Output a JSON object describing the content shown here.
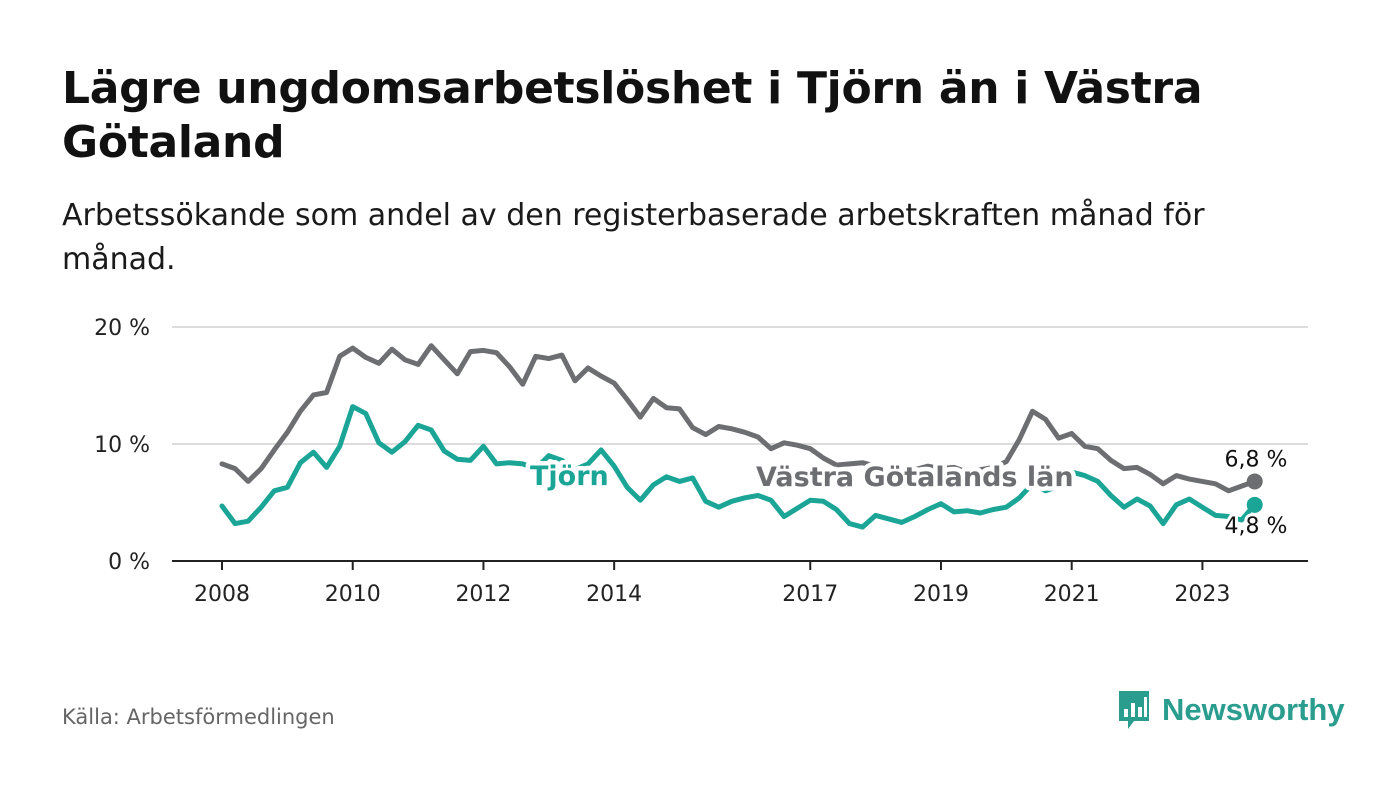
{
  "header": {
    "title": "Lägre ungdomsarbetslöshet i Tjörn än i Västra Götaland",
    "subtitle": "Arbetssökande som andel av den registerbaserade arbetskraften månad för månad."
  },
  "footer": {
    "source": "Källa: Arbetsförmedlingen",
    "brand": "Newsworthy"
  },
  "colors": {
    "vastra": "#6d6e71",
    "tjorn": "#1aa597",
    "grid": "#dcdcdc",
    "axis": "#222222"
  },
  "chart_data": {
    "type": "line",
    "title": "Lägre ungdomsarbetslöshet i Tjörn än i Västra Götaland",
    "xlabel": "",
    "ylabel": "",
    "ylim": [
      0,
      20
    ],
    "xlim": [
      2008,
      2024.6
    ],
    "y_ticks": [
      0,
      10,
      20
    ],
    "y_tick_labels": [
      "0 %",
      "10 %",
      "20 %"
    ],
    "x_ticks": [
      2008,
      2010,
      2012,
      2014,
      2017,
      2019,
      2021,
      2023
    ],
    "x_tick_labels": [
      "2008",
      "2010",
      "2012",
      "2014",
      "2017",
      "2019",
      "2021",
      "2023"
    ],
    "grid": true,
    "series": [
      {
        "name": "Västra Götalands län",
        "color": "#6d6e71",
        "end_label": "6,8 %",
        "points": [
          [
            2008.0,
            8.3
          ],
          [
            2008.2,
            7.9
          ],
          [
            2008.4,
            6.8
          ],
          [
            2008.6,
            7.9
          ],
          [
            2008.8,
            9.5
          ],
          [
            2009.0,
            11.0
          ],
          [
            2009.2,
            12.8
          ],
          [
            2009.4,
            14.2
          ],
          [
            2009.6,
            14.4
          ],
          [
            2009.8,
            17.5
          ],
          [
            2010.0,
            18.2
          ],
          [
            2010.2,
            17.4
          ],
          [
            2010.4,
            16.9
          ],
          [
            2010.6,
            18.1
          ],
          [
            2010.8,
            17.2
          ],
          [
            2011.0,
            16.8
          ],
          [
            2011.2,
            18.4
          ],
          [
            2011.4,
            17.2
          ],
          [
            2011.6,
            16.0
          ],
          [
            2011.8,
            17.9
          ],
          [
            2012.0,
            18.0
          ],
          [
            2012.2,
            17.8
          ],
          [
            2012.4,
            16.6
          ],
          [
            2012.6,
            15.1
          ],
          [
            2012.8,
            17.5
          ],
          [
            2013.0,
            17.3
          ],
          [
            2013.2,
            17.6
          ],
          [
            2013.4,
            15.4
          ],
          [
            2013.6,
            16.5
          ],
          [
            2013.8,
            15.8
          ],
          [
            2014.0,
            15.2
          ],
          [
            2014.2,
            13.8
          ],
          [
            2014.4,
            12.3
          ],
          [
            2014.6,
            13.9
          ],
          [
            2014.8,
            13.1
          ],
          [
            2015.0,
            13.0
          ],
          [
            2015.2,
            11.4
          ],
          [
            2015.4,
            10.8
          ],
          [
            2015.6,
            11.5
          ],
          [
            2015.8,
            11.3
          ],
          [
            2016.0,
            11.0
          ],
          [
            2016.2,
            10.6
          ],
          [
            2016.4,
            9.6
          ],
          [
            2016.6,
            10.1
          ],
          [
            2016.8,
            9.9
          ],
          [
            2017.0,
            9.6
          ],
          [
            2017.2,
            8.8
          ],
          [
            2017.4,
            8.2
          ],
          [
            2017.6,
            8.3
          ],
          [
            2017.8,
            8.4
          ],
          [
            2018.0,
            8.1
          ],
          [
            2018.2,
            7.9
          ],
          [
            2018.4,
            8.0
          ],
          [
            2018.6,
            7.8
          ],
          [
            2018.8,
            8.1
          ],
          [
            2019.0,
            7.9
          ],
          [
            2019.2,
            8.0
          ],
          [
            2019.4,
            7.6
          ],
          [
            2019.6,
            7.8
          ],
          [
            2019.8,
            8.0
          ],
          [
            2020.0,
            8.5
          ],
          [
            2020.2,
            10.4
          ],
          [
            2020.4,
            12.8
          ],
          [
            2020.6,
            12.1
          ],
          [
            2020.8,
            10.5
          ],
          [
            2021.0,
            10.9
          ],
          [
            2021.2,
            9.8
          ],
          [
            2021.4,
            9.6
          ],
          [
            2021.6,
            8.6
          ],
          [
            2021.8,
            7.9
          ],
          [
            2022.0,
            8.0
          ],
          [
            2022.2,
            7.4
          ],
          [
            2022.4,
            6.6
          ],
          [
            2022.6,
            7.3
          ],
          [
            2022.8,
            7.0
          ],
          [
            2023.0,
            6.8
          ],
          [
            2023.2,
            6.6
          ],
          [
            2023.4,
            6.0
          ],
          [
            2023.6,
            6.4
          ],
          [
            2023.8,
            6.8
          ]
        ]
      },
      {
        "name": "Tjörn",
        "color": "#1aa597",
        "end_label": "4,8 %",
        "points": [
          [
            2008.0,
            4.7
          ],
          [
            2008.2,
            3.2
          ],
          [
            2008.4,
            3.4
          ],
          [
            2008.6,
            4.6
          ],
          [
            2008.8,
            6.0
          ],
          [
            2009.0,
            6.3
          ],
          [
            2009.2,
            8.4
          ],
          [
            2009.4,
            9.3
          ],
          [
            2009.6,
            8.0
          ],
          [
            2009.8,
            9.8
          ],
          [
            2010.0,
            13.2
          ],
          [
            2010.2,
            12.6
          ],
          [
            2010.4,
            10.1
          ],
          [
            2010.6,
            9.3
          ],
          [
            2010.8,
            10.2
          ],
          [
            2011.0,
            11.6
          ],
          [
            2011.2,
            11.2
          ],
          [
            2011.4,
            9.4
          ],
          [
            2011.6,
            8.7
          ],
          [
            2011.8,
            8.6
          ],
          [
            2012.0,
            9.8
          ],
          [
            2012.2,
            8.3
          ],
          [
            2012.4,
            8.4
          ],
          [
            2012.6,
            8.3
          ],
          [
            2012.8,
            7.9
          ],
          [
            2013.0,
            9.0
          ],
          [
            2013.2,
            8.6
          ],
          [
            2013.4,
            7.8
          ],
          [
            2013.6,
            8.3
          ],
          [
            2013.8,
            9.5
          ],
          [
            2014.0,
            8.1
          ],
          [
            2014.2,
            6.3
          ],
          [
            2014.4,
            5.2
          ],
          [
            2014.6,
            6.5
          ],
          [
            2014.8,
            7.2
          ],
          [
            2015.0,
            6.8
          ],
          [
            2015.2,
            7.1
          ],
          [
            2015.4,
            5.1
          ],
          [
            2015.6,
            4.6
          ],
          [
            2015.8,
            5.1
          ],
          [
            2016.0,
            5.4
          ],
          [
            2016.2,
            5.6
          ],
          [
            2016.4,
            5.2
          ],
          [
            2016.6,
            3.8
          ],
          [
            2016.8,
            4.5
          ],
          [
            2017.0,
            5.2
          ],
          [
            2017.2,
            5.1
          ],
          [
            2017.4,
            4.4
          ],
          [
            2017.6,
            3.2
          ],
          [
            2017.8,
            2.9
          ],
          [
            2018.0,
            3.9
          ],
          [
            2018.2,
            3.6
          ],
          [
            2018.4,
            3.3
          ],
          [
            2018.6,
            3.8
          ],
          [
            2018.8,
            4.4
          ],
          [
            2019.0,
            4.9
          ],
          [
            2019.2,
            4.2
          ],
          [
            2019.4,
            4.3
          ],
          [
            2019.6,
            4.1
          ],
          [
            2019.8,
            4.4
          ],
          [
            2020.0,
            4.6
          ],
          [
            2020.2,
            5.4
          ],
          [
            2020.4,
            6.6
          ],
          [
            2020.6,
            6.0
          ],
          [
            2020.8,
            6.4
          ],
          [
            2021.0,
            7.6
          ],
          [
            2021.2,
            7.3
          ],
          [
            2021.4,
            6.8
          ],
          [
            2021.6,
            5.6
          ],
          [
            2021.8,
            4.6
          ],
          [
            2022.0,
            5.3
          ],
          [
            2022.2,
            4.7
          ],
          [
            2022.4,
            3.2
          ],
          [
            2022.6,
            4.8
          ],
          [
            2022.8,
            5.3
          ],
          [
            2023.0,
            4.6
          ],
          [
            2023.2,
            3.9
          ],
          [
            2023.4,
            3.8
          ],
          [
            2023.6,
            3.5
          ],
          [
            2023.8,
            4.8
          ]
        ]
      }
    ]
  }
}
